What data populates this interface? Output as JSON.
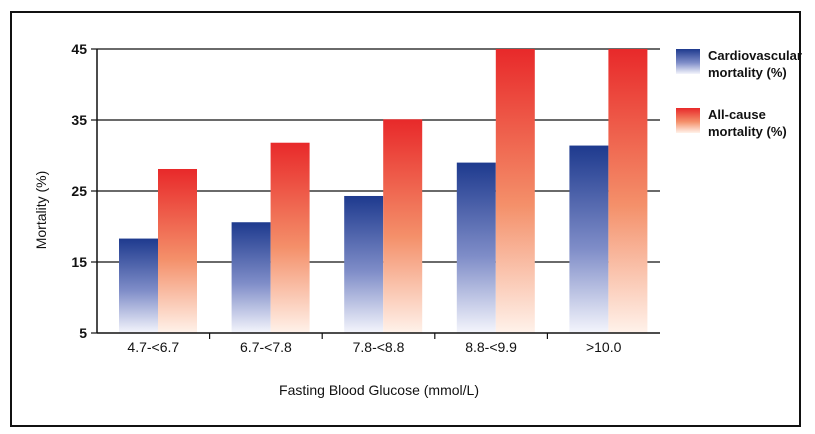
{
  "chart_data": {
    "type": "bar",
    "categories": [
      "4.7-<6.7",
      "6.7-<7.8",
      "7.8-<8.8",
      "8.8-<9.9",
      ">10.0"
    ],
    "series": [
      {
        "name": "Cardiovascular mortality (%)",
        "legend_lines": [
          "Cardiovascular",
          "mortality (%)"
        ],
        "values": [
          18.3,
          20.6,
          24.3,
          29.0,
          31.4
        ],
        "color_top": "#1e3a8e",
        "color_bottom": "#ffffff"
      },
      {
        "name": "All-cause mortality (%)",
        "legend_lines": [
          "All-cause",
          "mortality (%)"
        ],
        "values": [
          28.1,
          31.8,
          35.1,
          45.0,
          45.0
        ],
        "color_top": "#e8292a",
        "color_bottom": "#ffffff"
      }
    ],
    "xlabel": "Fasting Blood Glucose (mmol/L)",
    "ylabel": "Mortality (%)",
    "ylim": [
      5,
      45
    ],
    "yticks": [
      5,
      15,
      25,
      35,
      45
    ],
    "grid": true,
    "legend_position": "right"
  }
}
